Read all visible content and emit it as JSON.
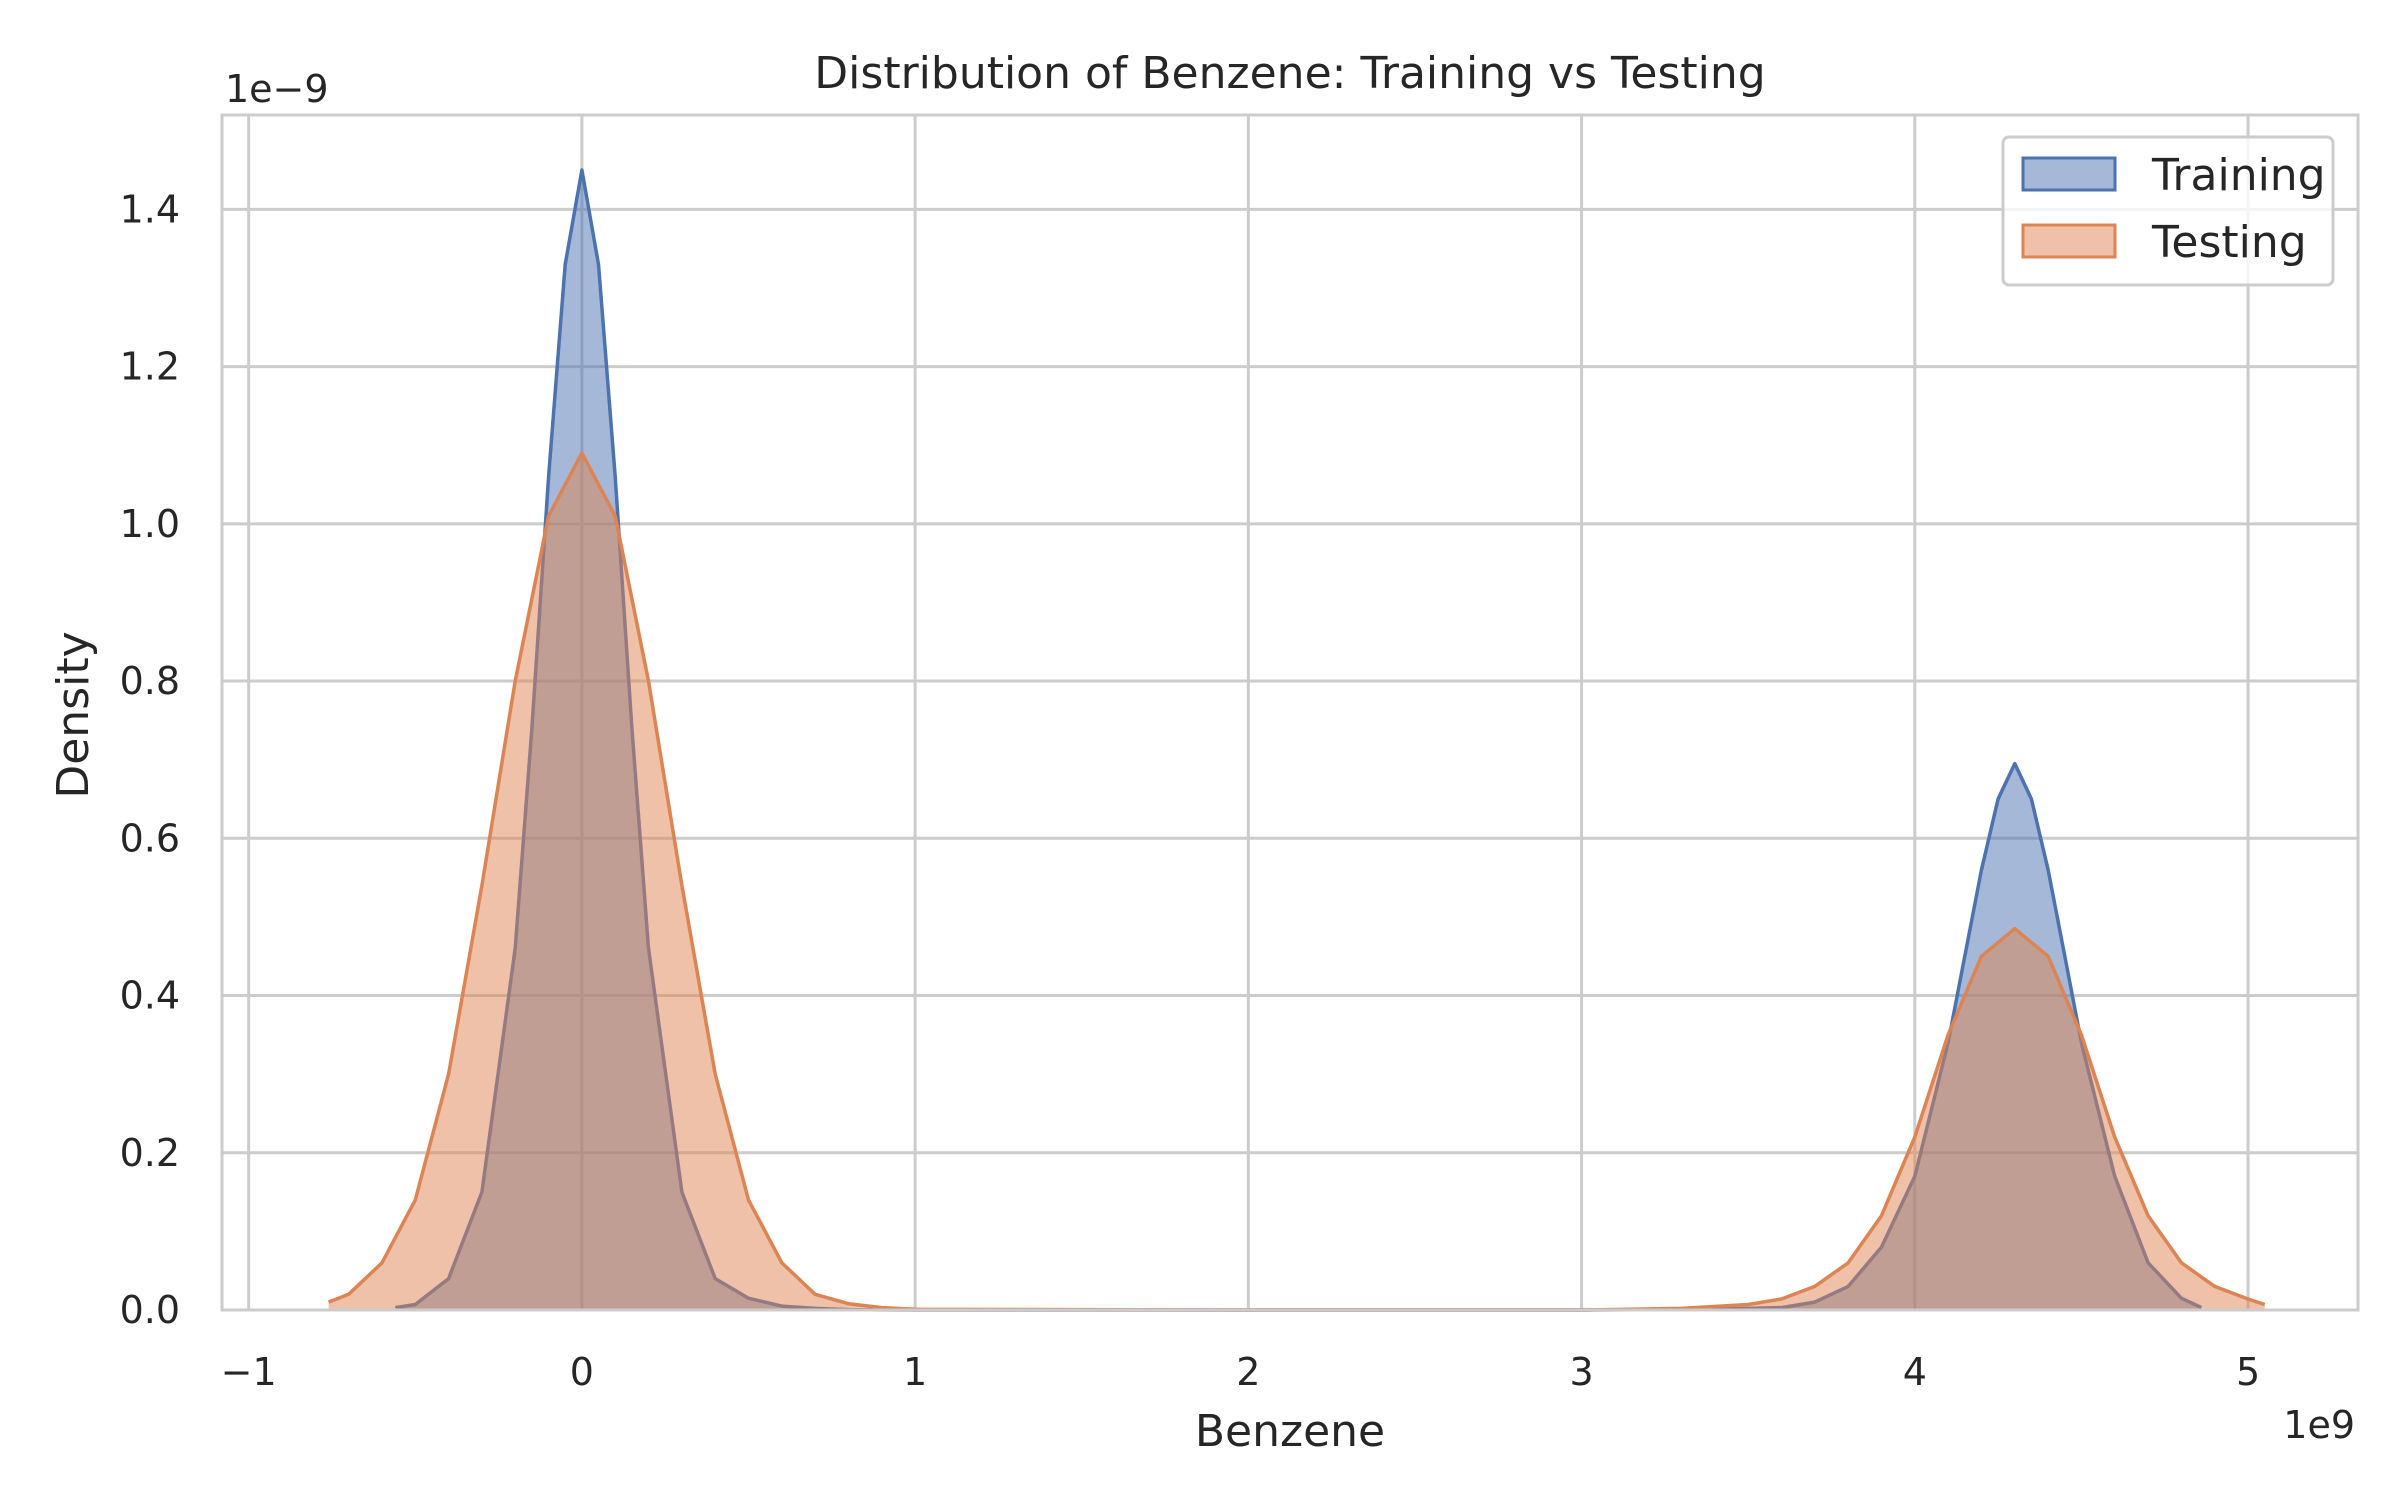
{
  "chart_data": {
    "type": "area",
    "title": "Distribution of Benzene: Training vs Testing",
    "xlabel": "Benzene",
    "ylabel": "Density",
    "x_offset_label": "1e9",
    "y_offset_label": "1e−9",
    "xlim": [
      -1.08,
      5.33
    ],
    "ylim": [
      0,
      1.52
    ],
    "x_ticks": [
      -1,
      0,
      1,
      2,
      3,
      4,
      5
    ],
    "x_tick_labels": [
      "−1",
      "0",
      "1",
      "2",
      "3",
      "4",
      "5"
    ],
    "y_ticks": [
      0.0,
      0.2,
      0.4,
      0.6,
      0.8,
      1.0,
      1.2,
      1.4
    ],
    "y_tick_labels": [
      "0.0",
      "0.2",
      "0.4",
      "0.6",
      "0.8",
      "1.0",
      "1.2",
      "1.4"
    ],
    "grid": true,
    "legend_position": "top-right",
    "series": [
      {
        "name": "Training",
        "color": "#4c72b0",
        "x": [
          -0.56,
          -0.5,
          -0.4,
          -0.3,
          -0.2,
          -0.15,
          -0.1,
          -0.05,
          0.0,
          0.05,
          0.1,
          0.15,
          0.2,
          0.3,
          0.4,
          0.5,
          0.6,
          0.7,
          0.8,
          1.0,
          2.0,
          3.0,
          3.4,
          3.6,
          3.7,
          3.8,
          3.9,
          4.0,
          4.1,
          4.15,
          4.2,
          4.25,
          4.3,
          4.35,
          4.4,
          4.45,
          4.5,
          4.6,
          4.7,
          4.8,
          4.86
        ],
        "y": [
          0.003,
          0.007,
          0.04,
          0.15,
          0.46,
          0.74,
          1.06,
          1.33,
          1.45,
          1.33,
          1.06,
          0.74,
          0.46,
          0.15,
          0.04,
          0.015,
          0.005,
          0.002,
          0.0005,
          0.0,
          0.0,
          0.0,
          0.001,
          0.003,
          0.01,
          0.03,
          0.08,
          0.17,
          0.34,
          0.45,
          0.56,
          0.65,
          0.695,
          0.65,
          0.56,
          0.45,
          0.34,
          0.17,
          0.06,
          0.015,
          0.003
        ]
      },
      {
        "name": "Testing",
        "color": "#dd8452",
        "x": [
          -0.76,
          -0.7,
          -0.6,
          -0.5,
          -0.4,
          -0.3,
          -0.2,
          -0.1,
          0.0,
          0.1,
          0.2,
          0.3,
          0.4,
          0.5,
          0.6,
          0.7,
          0.8,
          0.9,
          1.0,
          2.0,
          3.0,
          3.3,
          3.5,
          3.6,
          3.7,
          3.8,
          3.9,
          4.0,
          4.1,
          4.2,
          4.3,
          4.4,
          4.5,
          4.6,
          4.7,
          4.8,
          4.9,
          5.0,
          5.05
        ],
        "y": [
          0.01,
          0.02,
          0.06,
          0.14,
          0.3,
          0.54,
          0.8,
          1.01,
          1.09,
          1.01,
          0.8,
          0.54,
          0.3,
          0.14,
          0.06,
          0.02,
          0.008,
          0.003,
          0.001,
          0.0,
          0.0,
          0.002,
          0.007,
          0.014,
          0.03,
          0.06,
          0.12,
          0.22,
          0.35,
          0.45,
          0.485,
          0.45,
          0.35,
          0.22,
          0.12,
          0.06,
          0.03,
          0.014,
          0.007
        ]
      }
    ]
  }
}
